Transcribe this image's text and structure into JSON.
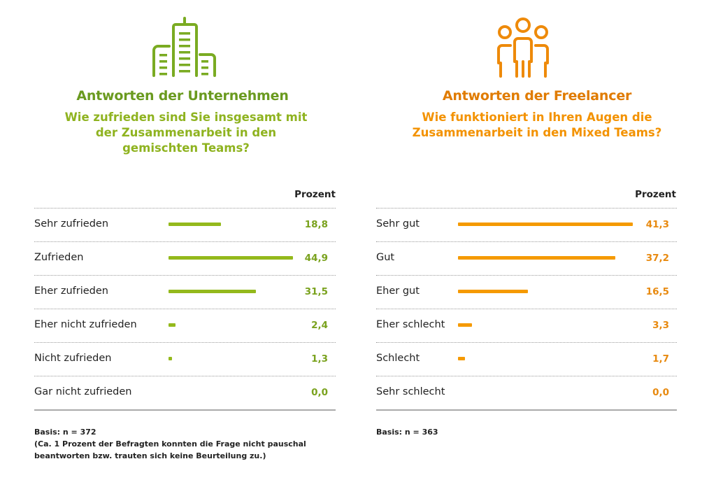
{
  "chart_data": [
    {
      "type": "bar",
      "orientation": "horizontal",
      "title": "Antworten der Unternehmen",
      "subtitle": "Wie zufrieden sind Sie insgesamt mit der Zusammenarbeit in den gemischten Teams?",
      "value_header": "Prozent",
      "categories": [
        "Sehr zufrieden",
        "Zufrieden",
        "Eher zufrieden",
        "Eher nicht zufrieden",
        "Nicht zufrieden",
        "Gar nicht zufrieden"
      ],
      "values": [
        18.8,
        44.9,
        31.5,
        2.4,
        1.3,
        0.0
      ],
      "value_labels": [
        "18,8",
        "44,9",
        "31,5",
        "2,4",
        "1,3",
        "0,0"
      ],
      "unit": "%",
      "color": "#8fb320",
      "icon": "office-buildings-icon",
      "footnote": [
        "Basis: n = 372",
        "(Ca. 1 Prozent der Befragten konnten die Frage nicht pauschal",
        "beantworten bzw. trauten sich keine Beurteilung zu.)"
      ]
    },
    {
      "type": "bar",
      "orientation": "horizontal",
      "title": "Antworten der Freelancer",
      "subtitle": "Wie funktioniert in Ihren Augen die Zusammenarbeit in den Mixed Teams?",
      "value_header": "Prozent",
      "categories": [
        "Sehr gut",
        "Gut",
        "Eher gut",
        "Eher schlecht",
        "Schlecht",
        "Sehr schlecht"
      ],
      "values": [
        41.3,
        37.2,
        16.5,
        3.3,
        1.7,
        0.0
      ],
      "value_labels": [
        "41,3",
        "37,2",
        "16,5",
        "3,3",
        "1,7",
        "0,0"
      ],
      "unit": "%",
      "color": "#f39200",
      "icon": "people-group-icon",
      "footnote": [
        "Basis: n = 363"
      ]
    }
  ],
  "colors": {
    "left_title": "#6a9a1f",
    "left_subtitle": "#8fb320",
    "left_bar": "#94b91c",
    "left_value": "#7aa21e",
    "right_title": "#e07b00",
    "right_subtitle": "#f39200",
    "right_bar": "#f59a00",
    "right_value": "#e88a10"
  }
}
